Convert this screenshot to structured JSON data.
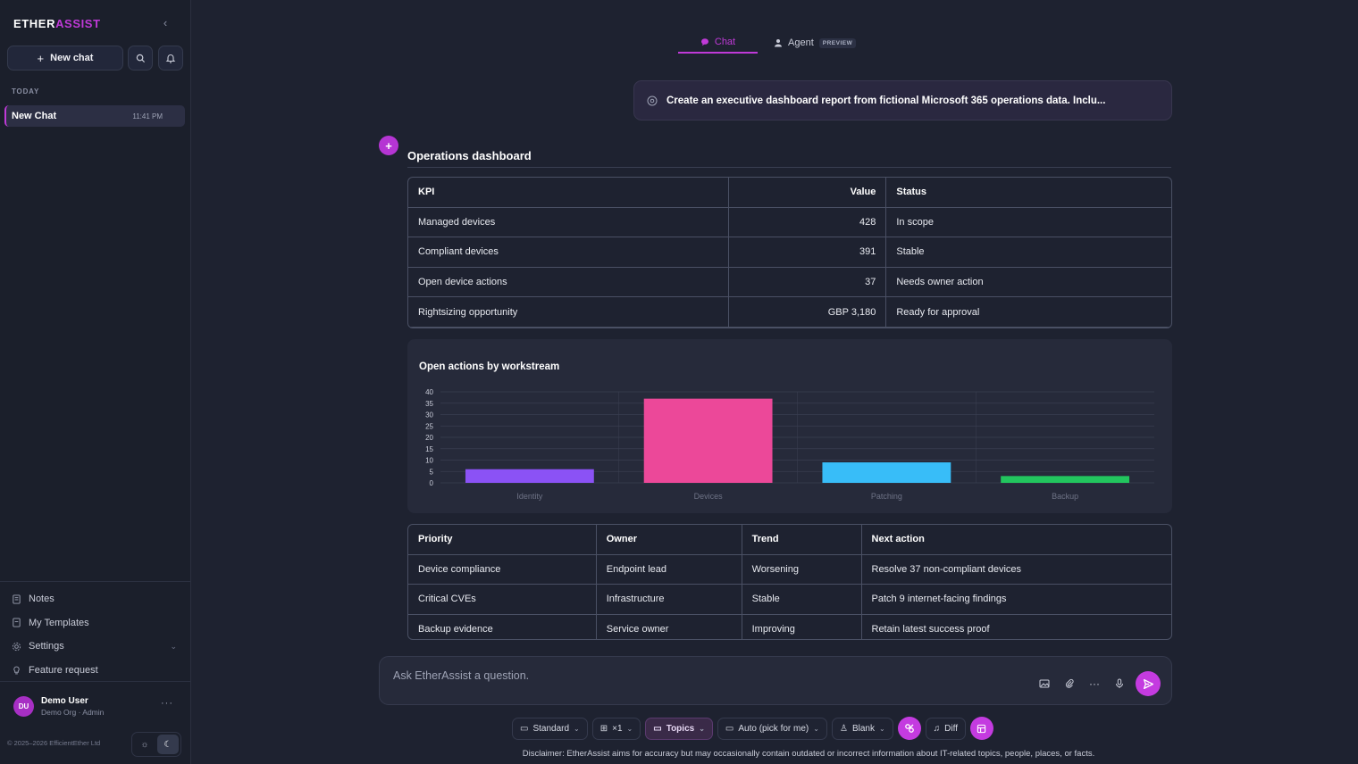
{
  "brand": {
    "part1": "ETHER",
    "part2": "ASSIST"
  },
  "sidebar": {
    "new_chat_label": "New chat",
    "section_label": "TODAY",
    "chats": [
      {
        "title": "New Chat",
        "time": "11:41 PM"
      }
    ],
    "nav": [
      {
        "label": "Notes",
        "icon": "notes-icon"
      },
      {
        "label": "My Templates",
        "icon": "templates-icon"
      },
      {
        "label": "Settings",
        "icon": "gear-icon"
      },
      {
        "label": "Feature request",
        "icon": "lightbulb-icon"
      }
    ],
    "user": {
      "initials": "DU",
      "name": "Demo User",
      "org": "Demo Org · Admin"
    },
    "copyright": "© 2025–2026 EfficientEther Ltd"
  },
  "tabs": {
    "chat": "Chat",
    "agent": "Agent",
    "agent_badge": "PREVIEW"
  },
  "prompt": "Create an executive dashboard report from fictional Microsoft 365 operations data. Inclu...",
  "response": {
    "title": "Operations dashboard",
    "kpi_table": {
      "headers": [
        "KPI",
        "Value",
        "Status"
      ],
      "rows": [
        [
          "Managed devices",
          "428",
          "In scope"
        ],
        [
          "Compliant devices",
          "391",
          "Stable"
        ],
        [
          "Open device actions",
          "37",
          "Needs owner action"
        ],
        [
          "Rightsizing opportunity",
          "GBP 3,180",
          "Ready for approval"
        ]
      ]
    },
    "priority_table": {
      "headers": [
        "Priority",
        "Owner",
        "Trend",
        "Next action"
      ],
      "rows": [
        [
          "Device compliance",
          "Endpoint lead",
          "Worsening",
          "Resolve 37 non-compliant devices"
        ],
        [
          "Critical CVEs",
          "Infrastructure",
          "Stable",
          "Patch 9 internet-facing findings"
        ],
        [
          "Backup evidence",
          "Service owner",
          "Improving",
          "Retain latest success proof"
        ]
      ]
    }
  },
  "chart_data": {
    "type": "bar",
    "title": "Open actions by workstream",
    "categories": [
      "Identity",
      "Devices",
      "Patching",
      "Backup"
    ],
    "values": [
      6,
      37,
      9,
      3
    ],
    "colors": [
      "#8b52f5",
      "#ec4899",
      "#38bdf8",
      "#22c55e"
    ],
    "ylim": [
      0,
      40
    ],
    "yticks": [
      0,
      5,
      10,
      15,
      20,
      25,
      30,
      35,
      40
    ],
    "xlabel": "",
    "ylabel": "",
    "grid": true
  },
  "input": {
    "placeholder": "Ask EtherAssist a question."
  },
  "toolbar": {
    "standard": "Standard",
    "multiplier": "×1",
    "topics": "Topics",
    "auto": "Auto (pick for me)",
    "blank": "Blank",
    "diff": "Diff"
  },
  "disclaimer": "Disclaimer: EtherAssist aims for accuracy but may occasionally contain outdated or incorrect information about IT-related topics, people, places, or facts.",
  "colors": {
    "accent": "#c03ad8",
    "background": "#1e2230",
    "sidebar": "#1b1f2b"
  }
}
